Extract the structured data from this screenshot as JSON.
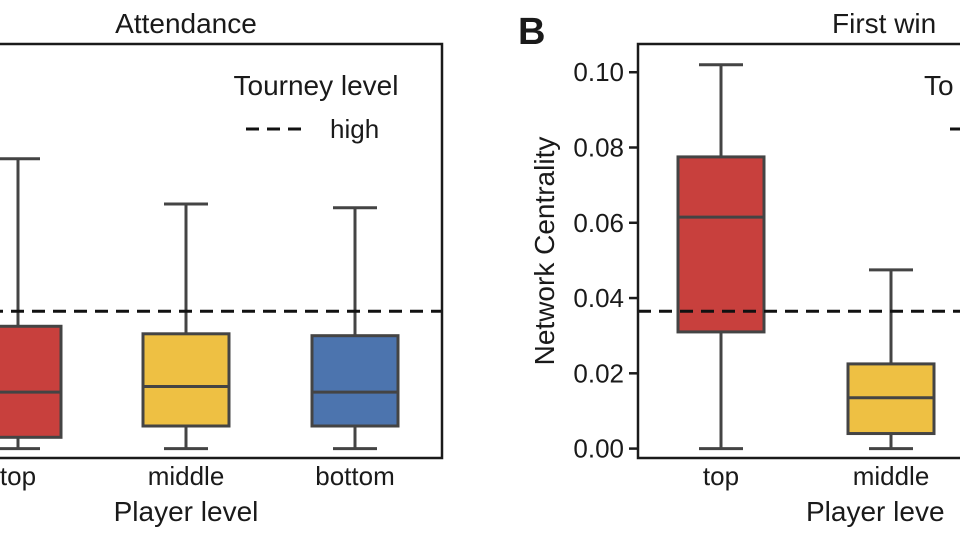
{
  "panels": [
    {
      "title": "Attendance",
      "letter": "",
      "legend_title": "Tourney level",
      "legend_label": "high",
      "xlabel": "Player level"
    },
    {
      "title": "First win",
      "letter": "B",
      "legend_title": "To",
      "legend_label": "",
      "xlabel": "Player leve",
      "ylabel": "Network Centrality"
    }
  ],
  "chart_data": [
    {
      "type": "box",
      "title": "Attendance",
      "xlabel": "Player level",
      "categories": [
        "top",
        "middle",
        "bottom"
      ],
      "colors": [
        "#c8403d",
        "#eec043",
        "#4c74ae"
      ],
      "ylim": [
        -0.0025,
        0.1075
      ],
      "reference_line": {
        "label": "high",
        "value": 0.0365,
        "style": "dashed"
      },
      "boxes": [
        {
          "category": "top",
          "whisker_low": 0.0,
          "q1": 0.003,
          "median": 0.015,
          "q3": 0.0325,
          "whisker_high": 0.077
        },
        {
          "category": "middle",
          "whisker_low": 0.0,
          "q1": 0.006,
          "median": 0.0165,
          "q3": 0.0305,
          "whisker_high": 0.065
        },
        {
          "category": "bottom",
          "whisker_low": 0.0,
          "q1": 0.006,
          "median": 0.015,
          "q3": 0.03,
          "whisker_high": 0.064
        }
      ],
      "legend": {
        "title": "Tourney level",
        "entries": [
          "high"
        ],
        "position": "top-right"
      }
    },
    {
      "type": "box",
      "title": "First win",
      "xlabel": "Player leve",
      "ylabel": "Network Centrality",
      "categories": [
        "top",
        "middle"
      ],
      "yticks": [
        0.0,
        0.02,
        0.04,
        0.06,
        0.08,
        0.1
      ],
      "ytick_labels": [
        "0.00",
        "0.02",
        "0.04",
        "0.06",
        "0.08",
        "0.10"
      ],
      "ylim": [
        -0.0025,
        0.1075
      ],
      "colors": [
        "#c8403d",
        "#eec043"
      ],
      "reference_line": {
        "value": 0.0365,
        "style": "dashed"
      },
      "boxes": [
        {
          "category": "top",
          "whisker_low": 0.0,
          "q1": 0.031,
          "median": 0.0615,
          "q3": 0.0775,
          "whisker_high": 0.102
        },
        {
          "category": "middle",
          "whisker_low": 0.0,
          "q1": 0.004,
          "median": 0.0135,
          "q3": 0.0225,
          "whisker_high": 0.0475
        }
      ],
      "legend": {
        "title": "To",
        "position": "top-right"
      }
    }
  ]
}
